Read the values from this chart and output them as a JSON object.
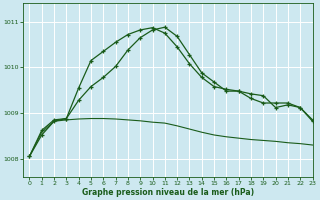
{
  "title": "Graphe pression niveau de la mer (hPa)",
  "background_color": "#cde8f0",
  "grid_color": "#ffffff",
  "line_color": "#1a5c1a",
  "xlim": [
    -0.5,
    23
  ],
  "ylim": [
    1007.6,
    1011.4
  ],
  "xticks": [
    0,
    1,
    2,
    3,
    4,
    5,
    6,
    7,
    8,
    9,
    10,
    11,
    12,
    13,
    14,
    15,
    16,
    17,
    18,
    19,
    20,
    21,
    22,
    23
  ],
  "yticks": [
    1008,
    1009,
    1010,
    1011
  ],
  "series1_x": [
    0,
    1,
    2,
    3,
    4,
    5,
    6,
    7,
    8,
    9,
    10,
    11,
    12,
    13,
    14,
    15,
    16,
    17,
    18,
    19,
    20,
    21,
    22,
    23
  ],
  "series1_y": [
    1008.05,
    1008.62,
    1008.85,
    1008.88,
    1009.55,
    1010.15,
    1010.35,
    1010.55,
    1010.72,
    1010.82,
    1010.87,
    1010.75,
    1010.45,
    1010.08,
    1009.78,
    1009.58,
    1009.52,
    1009.48,
    1009.42,
    1009.38,
    1009.12,
    1009.18,
    1009.12,
    1008.85
  ],
  "series2_x": [
    0,
    1,
    2,
    3,
    4,
    5,
    6,
    7,
    8,
    9,
    10,
    11,
    12,
    13,
    14,
    15,
    16,
    17,
    18,
    19,
    20,
    21,
    22,
    23
  ],
  "series2_y": [
    1008.05,
    1008.52,
    1008.82,
    1008.88,
    1009.28,
    1009.58,
    1009.78,
    1010.02,
    1010.38,
    1010.65,
    1010.82,
    1010.88,
    1010.68,
    1010.28,
    1009.88,
    1009.68,
    1009.48,
    1009.48,
    1009.32,
    1009.22,
    1009.22,
    1009.22,
    1009.12,
    1008.82
  ],
  "series3_x": [
    0,
    1,
    2,
    3,
    4,
    5,
    6,
    7,
    8,
    9,
    10,
    11,
    12,
    13,
    14,
    15,
    16,
    17,
    18,
    19,
    20,
    21,
    22,
    23
  ],
  "series3_y": [
    1008.05,
    1008.58,
    1008.82,
    1008.85,
    1008.87,
    1008.88,
    1008.88,
    1008.87,
    1008.85,
    1008.83,
    1008.8,
    1008.78,
    1008.72,
    1008.65,
    1008.58,
    1008.52,
    1008.48,
    1008.45,
    1008.42,
    1008.4,
    1008.38,
    1008.35,
    1008.33,
    1008.3
  ]
}
